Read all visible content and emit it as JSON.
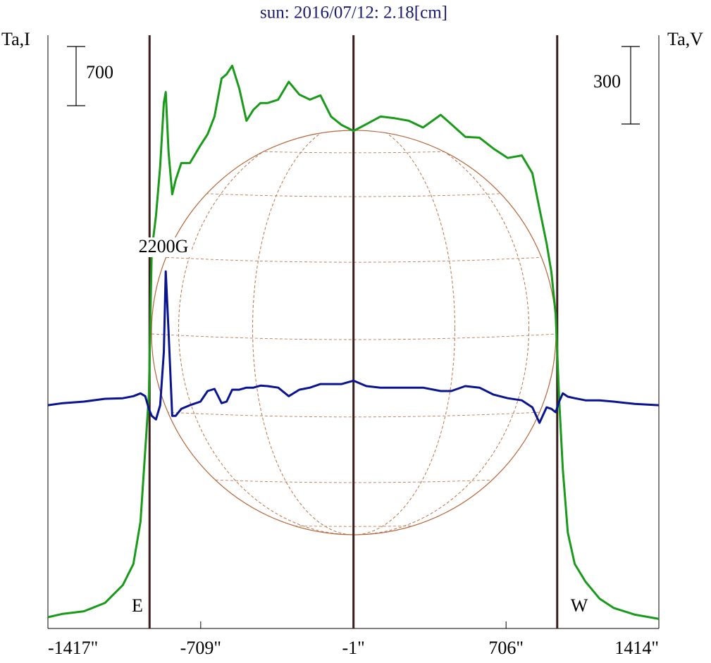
{
  "chart_data": {
    "type": "line",
    "title": "sun: 2016/07/12: 2.18[cm]",
    "y_label": "Ta,I",
    "y2_label": "Ta,V",
    "x": [
      -1417,
      -1348,
      -1250,
      -1152,
      -1070,
      -1021,
      -988,
      -966,
      -949,
      -936,
      -916,
      -897,
      -880,
      -871,
      -858,
      -841,
      -825,
      -799,
      -759,
      -710,
      -677,
      -645,
      -612,
      -589,
      -563,
      -530,
      -497,
      -465,
      -432,
      -399,
      -350,
      -301,
      -252,
      -203,
      -154,
      -105,
      -56,
      -1,
      59,
      124,
      190,
      255,
      321,
      403,
      452,
      517,
      583,
      648,
      714,
      779,
      828,
      861,
      894,
      916,
      936,
      952,
      969,
      992,
      1024,
      1074,
      1139,
      1204,
      1303,
      1414
    ],
    "series": [
      {
        "color": "#1a9a1a",
        "axis": "y",
        "values": [
          0,
          40,
          70,
          170,
          380,
          630,
          1130,
          1970,
          2630,
          4330,
          4750,
          5330,
          6080,
          6210,
          5500,
          5000,
          5170,
          5370,
          5370,
          5580,
          5710,
          5920,
          6370,
          6420,
          6520,
          6250,
          5870,
          6000,
          6080,
          6080,
          6120,
          6330,
          6180,
          6120,
          6170,
          5920,
          5820,
          5750,
          5830,
          5920,
          5900,
          5870,
          5790,
          5940,
          5830,
          5680,
          5670,
          5540,
          5430,
          5460,
          5250,
          4830,
          4420,
          4080,
          3580,
          2580,
          1750,
          1000,
          630,
          420,
          220,
          110,
          30,
          -20
        ]
      },
      {
        "color": "#0a1490",
        "axis": "y2",
        "values": [
          0,
          8,
          14,
          25,
          27,
          35,
          46,
          35,
          -14,
          -41,
          -55,
          0,
          205,
          518,
          286,
          -41,
          -41,
          -14,
          0,
          14,
          55,
          63,
          8,
          14,
          60,
          60,
          68,
          68,
          76,
          74,
          68,
          35,
          60,
          68,
          82,
          82,
          82,
          95,
          74,
          68,
          68,
          68,
          68,
          55,
          55,
          74,
          68,
          41,
          27,
          19,
          -8,
          -68,
          -8,
          -14,
          -27,
          14,
          46,
          33,
          27,
          19,
          19,
          14,
          5,
          0
        ]
      }
    ],
    "xlim": [
      -1417,
      1414
    ],
    "xticks": [
      {
        "value": -1417,
        "label": "-1417\""
      },
      {
        "value": -709,
        "label": "-709\""
      },
      {
        "value": -1,
        "label": "-1\""
      },
      {
        "value": 706,
        "label": "706\""
      },
      {
        "value": 1414,
        "label": "1414\""
      }
    ],
    "ylim": [
      -133,
      6881
    ],
    "y2lim": [
      -864,
      1432
    ],
    "scale_bars": [
      {
        "value": 700,
        "axis": "y"
      },
      {
        "value": 300,
        "axis": "y2"
      }
    ],
    "vlines": [
      -946,
      -1,
      943
    ],
    "annotations": [
      "2200G",
      "E",
      "W"
    ]
  }
}
